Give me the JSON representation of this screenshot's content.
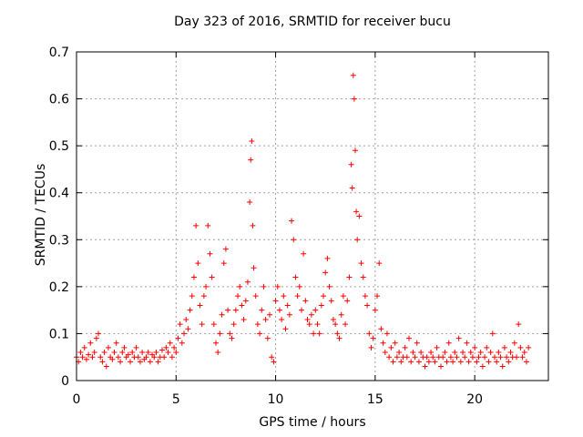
{
  "chart_data": {
    "type": "scatter",
    "title": "Day 323 of 2016, SRMTID for receiver bucu",
    "xlabel": "GPS time / hours",
    "ylabel": "SRMTID / TECUs",
    "xlim": [
      0,
      23.7
    ],
    "ylim": [
      0,
      0.7
    ],
    "x_ticks": [
      0,
      5,
      10,
      15,
      20
    ],
    "x_tick_labels": [
      "0",
      "5",
      "10",
      "15",
      "20"
    ],
    "y_ticks": [
      0,
      0.1,
      0.2,
      0.3,
      0.4,
      0.5,
      0.6,
      0.7
    ],
    "y_tick_labels": [
      "0",
      "0.1",
      "0.2",
      "0.3",
      "0.4",
      "0.5",
      "0.6",
      "0.7"
    ],
    "grid": true,
    "marker": "+",
    "marker_color": "#ff0000",
    "series": [
      {
        "name": "SRMTID",
        "points": [
          [
            0.0,
            0.05
          ],
          [
            0.1,
            0.04
          ],
          [
            0.2,
            0.06
          ],
          [
            0.3,
            0.05
          ],
          [
            0.4,
            0.07
          ],
          [
            0.5,
            0.045
          ],
          [
            0.6,
            0.055
          ],
          [
            0.7,
            0.08
          ],
          [
            0.8,
            0.05
          ],
          [
            0.9,
            0.06
          ],
          [
            1.0,
            0.09
          ],
          [
            1.1,
            0.1
          ],
          [
            1.2,
            0.05
          ],
          [
            1.3,
            0.04
          ],
          [
            1.4,
            0.06
          ],
          [
            1.5,
            0.03
          ],
          [
            1.6,
            0.07
          ],
          [
            1.7,
            0.05
          ],
          [
            1.8,
            0.045
          ],
          [
            1.9,
            0.06
          ],
          [
            2.0,
            0.08
          ],
          [
            2.1,
            0.05
          ],
          [
            2.2,
            0.04
          ],
          [
            2.3,
            0.06
          ],
          [
            2.4,
            0.07
          ],
          [
            2.5,
            0.05
          ],
          [
            2.6,
            0.055
          ],
          [
            2.7,
            0.04
          ],
          [
            2.8,
            0.06
          ],
          [
            2.9,
            0.05
          ],
          [
            3.0,
            0.07
          ],
          [
            3.1,
            0.05
          ],
          [
            3.2,
            0.04
          ],
          [
            3.3,
            0.06
          ],
          [
            3.4,
            0.045
          ],
          [
            3.5,
            0.05
          ],
          [
            3.6,
            0.06
          ],
          [
            3.7,
            0.04
          ],
          [
            3.8,
            0.055
          ],
          [
            3.9,
            0.05
          ],
          [
            4.0,
            0.06
          ],
          [
            4.1,
            0.04
          ],
          [
            4.2,
            0.05
          ],
          [
            4.3,
            0.065
          ],
          [
            4.4,
            0.05
          ],
          [
            4.5,
            0.07
          ],
          [
            4.6,
            0.06
          ],
          [
            4.7,
            0.08
          ],
          [
            4.8,
            0.05
          ],
          [
            4.9,
            0.07
          ],
          [
            5.0,
            0.06
          ],
          [
            5.1,
            0.09
          ],
          [
            5.2,
            0.12
          ],
          [
            5.3,
            0.08
          ],
          [
            5.4,
            0.1
          ],
          [
            5.5,
            0.13
          ],
          [
            5.6,
            0.11
          ],
          [
            5.7,
            0.15
          ],
          [
            5.8,
            0.18
          ],
          [
            5.9,
            0.22
          ],
          [
            6.0,
            0.33
          ],
          [
            6.1,
            0.25
          ],
          [
            6.2,
            0.16
          ],
          [
            6.3,
            0.12
          ],
          [
            6.4,
            0.18
          ],
          [
            6.5,
            0.2
          ],
          [
            6.6,
            0.33
          ],
          [
            6.7,
            0.27
          ],
          [
            6.8,
            0.22
          ],
          [
            6.9,
            0.12
          ],
          [
            7.0,
            0.08
          ],
          [
            7.1,
            0.06
          ],
          [
            7.2,
            0.1
          ],
          [
            7.3,
            0.14
          ],
          [
            7.4,
            0.25
          ],
          [
            7.5,
            0.28
          ],
          [
            7.6,
            0.15
          ],
          [
            7.7,
            0.1
          ],
          [
            7.8,
            0.09
          ],
          [
            7.9,
            0.12
          ],
          [
            8.0,
            0.15
          ],
          [
            8.1,
            0.18
          ],
          [
            8.2,
            0.2
          ],
          [
            8.3,
            0.16
          ],
          [
            8.4,
            0.13
          ],
          [
            8.5,
            0.17
          ],
          [
            8.6,
            0.21
          ],
          [
            8.7,
            0.38
          ],
          [
            8.75,
            0.47
          ],
          [
            8.8,
            0.51
          ],
          [
            8.85,
            0.33
          ],
          [
            8.9,
            0.24
          ],
          [
            9.0,
            0.18
          ],
          [
            9.1,
            0.12
          ],
          [
            9.2,
            0.1
          ],
          [
            9.3,
            0.15
          ],
          [
            9.4,
            0.2
          ],
          [
            9.5,
            0.13
          ],
          [
            9.6,
            0.09
          ],
          [
            9.7,
            0.14
          ],
          [
            9.8,
            0.05
          ],
          [
            9.9,
            0.04
          ],
          [
            10.0,
            0.17
          ],
          [
            10.1,
            0.2
          ],
          [
            10.2,
            0.15
          ],
          [
            10.3,
            0.13
          ],
          [
            10.4,
            0.18
          ],
          [
            10.5,
            0.11
          ],
          [
            10.6,
            0.16
          ],
          [
            10.7,
            0.14
          ],
          [
            10.8,
            0.34
          ],
          [
            10.9,
            0.3
          ],
          [
            11.0,
            0.22
          ],
          [
            11.1,
            0.18
          ],
          [
            11.2,
            0.2
          ],
          [
            11.3,
            0.15
          ],
          [
            11.4,
            0.27
          ],
          [
            11.5,
            0.17
          ],
          [
            11.6,
            0.13
          ],
          [
            11.7,
            0.12
          ],
          [
            11.8,
            0.14
          ],
          [
            11.9,
            0.1
          ],
          [
            12.0,
            0.15
          ],
          [
            12.1,
            0.12
          ],
          [
            12.2,
            0.1
          ],
          [
            12.3,
            0.16
          ],
          [
            12.4,
            0.18
          ],
          [
            12.5,
            0.23
          ],
          [
            12.6,
            0.26
          ],
          [
            12.7,
            0.2
          ],
          [
            12.8,
            0.17
          ],
          [
            12.9,
            0.13
          ],
          [
            13.0,
            0.12
          ],
          [
            13.1,
            0.1
          ],
          [
            13.2,
            0.09
          ],
          [
            13.3,
            0.14
          ],
          [
            13.4,
            0.18
          ],
          [
            13.5,
            0.12
          ],
          [
            13.6,
            0.17
          ],
          [
            13.7,
            0.22
          ],
          [
            13.8,
            0.46
          ],
          [
            13.85,
            0.41
          ],
          [
            13.9,
            0.65
          ],
          [
            13.95,
            0.6
          ],
          [
            14.0,
            0.49
          ],
          [
            14.05,
            0.36
          ],
          [
            14.1,
            0.3
          ],
          [
            14.2,
            0.35
          ],
          [
            14.3,
            0.25
          ],
          [
            14.4,
            0.22
          ],
          [
            14.5,
            0.18
          ],
          [
            14.6,
            0.16
          ],
          [
            14.7,
            0.1
          ],
          [
            14.8,
            0.07
          ],
          [
            14.9,
            0.09
          ],
          [
            15.0,
            0.15
          ],
          [
            15.1,
            0.18
          ],
          [
            15.2,
            0.25
          ],
          [
            15.3,
            0.11
          ],
          [
            15.4,
            0.08
          ],
          [
            15.5,
            0.06
          ],
          [
            15.6,
            0.1
          ],
          [
            15.7,
            0.05
          ],
          [
            15.8,
            0.07
          ],
          [
            15.9,
            0.04
          ],
          [
            16.0,
            0.08
          ],
          [
            16.1,
            0.05
          ],
          [
            16.2,
            0.06
          ],
          [
            16.3,
            0.04
          ],
          [
            16.4,
            0.05
          ],
          [
            16.5,
            0.07
          ],
          [
            16.6,
            0.05
          ],
          [
            16.7,
            0.09
          ],
          [
            16.8,
            0.04
          ],
          [
            16.9,
            0.06
          ],
          [
            17.0,
            0.05
          ],
          [
            17.1,
            0.08
          ],
          [
            17.2,
            0.04
          ],
          [
            17.3,
            0.06
          ],
          [
            17.4,
            0.05
          ],
          [
            17.5,
            0.03
          ],
          [
            17.6,
            0.05
          ],
          [
            17.7,
            0.04
          ],
          [
            17.8,
            0.06
          ],
          [
            17.9,
            0.05
          ],
          [
            18.0,
            0.04
          ],
          [
            18.1,
            0.07
          ],
          [
            18.2,
            0.05
          ],
          [
            18.3,
            0.03
          ],
          [
            18.4,
            0.05
          ],
          [
            18.5,
            0.06
          ],
          [
            18.6,
            0.04
          ],
          [
            18.7,
            0.08
          ],
          [
            18.8,
            0.05
          ],
          [
            18.9,
            0.04
          ],
          [
            19.0,
            0.06
          ],
          [
            19.1,
            0.05
          ],
          [
            19.2,
            0.09
          ],
          [
            19.3,
            0.04
          ],
          [
            19.4,
            0.06
          ],
          [
            19.5,
            0.05
          ],
          [
            19.6,
            0.08
          ],
          [
            19.7,
            0.04
          ],
          [
            19.8,
            0.06
          ],
          [
            19.9,
            0.05
          ],
          [
            20.0,
            0.07
          ],
          [
            20.1,
            0.04
          ],
          [
            20.2,
            0.05
          ],
          [
            20.3,
            0.06
          ],
          [
            20.4,
            0.03
          ],
          [
            20.5,
            0.05
          ],
          [
            20.6,
            0.07
          ],
          [
            20.7,
            0.04
          ],
          [
            20.8,
            0.06
          ],
          [
            20.9,
            0.1
          ],
          [
            21.0,
            0.05
          ],
          [
            21.1,
            0.04
          ],
          [
            21.2,
            0.06
          ],
          [
            21.3,
            0.05
          ],
          [
            21.4,
            0.03
          ],
          [
            21.5,
            0.07
          ],
          [
            21.6,
            0.05
          ],
          [
            21.7,
            0.04
          ],
          [
            21.8,
            0.06
          ],
          [
            21.9,
            0.05
          ],
          [
            22.0,
            0.08
          ],
          [
            22.1,
            0.05
          ],
          [
            22.2,
            0.12
          ],
          [
            22.3,
            0.07
          ],
          [
            22.4,
            0.05
          ],
          [
            22.5,
            0.06
          ],
          [
            22.6,
            0.04
          ],
          [
            22.7,
            0.07
          ]
        ]
      }
    ]
  }
}
